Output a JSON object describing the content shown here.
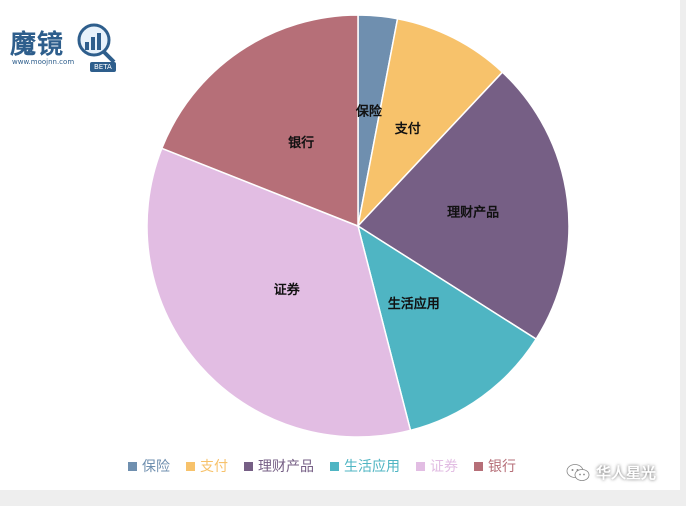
{
  "logo": {
    "name": "魔镜",
    "url": "www.moojnn.com",
    "badge": "BETA"
  },
  "watermark": {
    "text": "华人星光",
    "icon": "wechat-icon"
  },
  "chart_data": {
    "type": "pie",
    "categories": [
      "保险",
      "支付",
      "理财产品",
      "生活应用",
      "证券",
      "银行"
    ],
    "values": [
      3,
      9,
      22,
      12,
      35,
      19
    ],
    "colors": [
      "#6f8faf",
      "#f7c26b",
      "#765f85",
      "#4fb5c3",
      "#e2bde3",
      "#b66f78"
    ],
    "start_angle_deg": 0,
    "direction": "clockwise",
    "legend_position": "bottom"
  }
}
